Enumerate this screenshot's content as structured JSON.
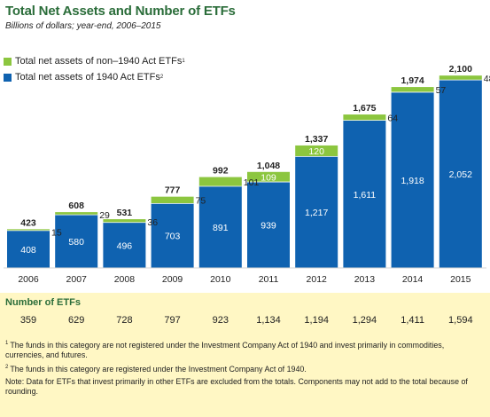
{
  "header": {
    "title": "Total Net Assets and Number of ETFs",
    "subtitle": "Billions of dollars; year-end, 2006–2015"
  },
  "legend": {
    "non1940_label": "Total net assets of non–1940 Act ETFs",
    "non1940_sup": "1",
    "act1940_label": "Total net assets of 1940 Act ETFs",
    "act1940_sup": "2"
  },
  "colors": {
    "green": "#8cc63f",
    "blue": "#0f62b0",
    "title_green": "#2b6d3a",
    "footer_bg": "#fff7c4"
  },
  "chart_data": {
    "type": "bar",
    "stacked": true,
    "categories": [
      "2006",
      "2007",
      "2008",
      "2009",
      "2010",
      "2011",
      "2012",
      "2013",
      "2014",
      "2015"
    ],
    "series": [
      {
        "name": "Total net assets of 1940 Act ETFs",
        "color": "#0f62b0",
        "values": [
          408,
          580,
          496,
          703,
          891,
          939,
          1217,
          1611,
          1918,
          2052
        ],
        "labels": [
          "408",
          "580",
          "496",
          "703",
          "891",
          "939",
          "1,217",
          "1,611",
          "1,918",
          "2,052"
        ]
      },
      {
        "name": "Total net assets of non–1940 Act ETFs",
        "color": "#8cc63f",
        "values": [
          15,
          29,
          36,
          75,
          101,
          109,
          120,
          64,
          57,
          48
        ],
        "labels": [
          "15",
          "29",
          "36",
          "75",
          "101",
          "109",
          "120",
          "64",
          "57",
          "48"
        ]
      }
    ],
    "totals": [
      423,
      608,
      531,
      777,
      992,
      1048,
      1337,
      1675,
      1974,
      2100
    ],
    "total_labels": [
      "423",
      "608",
      "531",
      "777",
      "992",
      "1,048",
      "1,337",
      "1,675",
      "1,974",
      "2,100"
    ],
    "ylim": [
      0,
      2150
    ],
    "legend": "top-left",
    "grid": false
  },
  "etf_counts": {
    "title": "Number of ETFs",
    "values": [
      "359",
      "629",
      "728",
      "797",
      "923",
      "1,134",
      "1,194",
      "1,294",
      "1,411",
      "1,594"
    ]
  },
  "footnotes": {
    "note1_sup": "1",
    "note1": "The funds in this category are not registered under the Investment Company Act of 1940 and invest primarily in commodities, currencies, and futures.",
    "note2_sup": "2",
    "note2": "The funds in this category are registered under the Investment Company Act of 1940.",
    "note3": "Note: Data for ETFs that invest primarily in other ETFs are excluded from the totals. Components may not add to the total because of rounding."
  }
}
